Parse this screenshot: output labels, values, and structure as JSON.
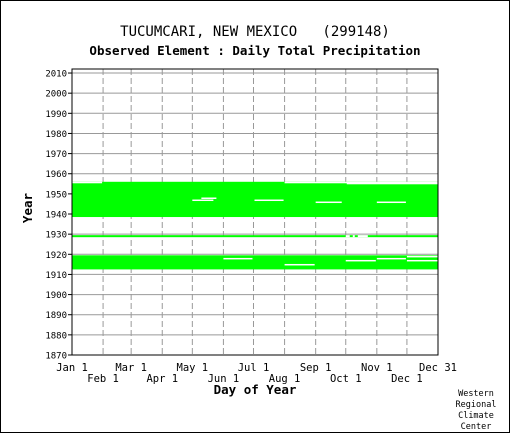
{
  "chart_data": {
    "type": "heatmap",
    "title": "TUCUMCARI, NEW MEXICO   (299148)",
    "subtitle": "Observed Element : Daily Total Precipitation",
    "xlabel": "Day of Year",
    "ylabel": "Year",
    "x_ticks_upper": [
      "Jan 1",
      "Mar 1",
      "May 1",
      "Jul 1",
      "Sep 1",
      "Nov 1",
      "Dec 31"
    ],
    "x_ticks_lower": [
      "Feb 1",
      "Apr 1",
      "Jun 1",
      "Aug 1",
      "Oct 1",
      "Dec 1"
    ],
    "y_ticks": [
      "2010",
      "2000",
      "1990",
      "1980",
      "1970",
      "1960",
      "1950",
      "1940",
      "1930",
      "1920",
      "1910",
      "1900",
      "1890",
      "1880",
      "1870"
    ],
    "ylim": [
      1870,
      2012
    ],
    "xlim": [
      1,
      365
    ],
    "grid": true,
    "data_color": "#00ff00",
    "series": [
      {
        "meaning": "data present",
        "blocks": [
          {
            "start_day": 1,
            "end_day": 366,
            "start_year": 1938.5,
            "end_year": 1956
          },
          {
            "start_day": 1,
            "end_day": 366,
            "start_year": 1928.5,
            "end_year": 1929.5
          },
          {
            "start_day": 1,
            "end_day": 366,
            "start_year": 1912.5,
            "end_year": 1919.5
          }
        ],
        "gaps": [
          {
            "start_day": 1,
            "end_day": 31,
            "start_year": 1955.5,
            "end_year": 1956
          },
          {
            "start_day": 213,
            "end_day": 366,
            "start_year": 1955.5,
            "end_year": 1956
          },
          {
            "start_day": 275,
            "end_day": 366,
            "start_year": 1955,
            "end_year": 1955.5
          },
          {
            "start_day": 121,
            "end_day": 142,
            "start_year": 1946.8,
            "end_year": 1947.2
          },
          {
            "start_day": 130,
            "end_day": 145,
            "start_year": 1947.8,
            "end_year": 1948.2
          },
          {
            "start_day": 183,
            "end_day": 212,
            "start_year": 1946.8,
            "end_year": 1947.2
          },
          {
            "start_day": 244,
            "end_day": 270,
            "start_year": 1945.8,
            "end_year": 1946.2
          },
          {
            "start_day": 305,
            "end_day": 334,
            "start_year": 1945.8,
            "end_year": 1946.2
          },
          {
            "start_day": 274,
            "end_day": 278,
            "start_year": 1928.5,
            "end_year": 1929.5
          },
          {
            "start_day": 281,
            "end_day": 283,
            "start_year": 1928.5,
            "end_year": 1929.5
          },
          {
            "start_day": 286,
            "end_day": 296,
            "start_year": 1928.5,
            "end_year": 1929.5
          },
          {
            "start_day": 152,
            "end_day": 181,
            "start_year": 1917.8,
            "end_year": 1918.2
          },
          {
            "start_day": 213,
            "end_day": 243,
            "start_year": 1914.8,
            "end_year": 1915.2
          },
          {
            "start_day": 274,
            "end_day": 304,
            "start_year": 1916.8,
            "end_year": 1917.2
          },
          {
            "start_day": 305,
            "end_day": 334,
            "start_year": 1917.8,
            "end_year": 1918.2
          },
          {
            "start_day": 335,
            "end_day": 366,
            "start_year": 1916.8,
            "end_year": 1917.2
          },
          {
            "start_day": 335,
            "end_day": 366,
            "start_year": 1918.8,
            "end_year": 1919.2
          }
        ]
      }
    ]
  },
  "credit": [
    "Western",
    "Regional",
    "Climate",
    "Center"
  ]
}
